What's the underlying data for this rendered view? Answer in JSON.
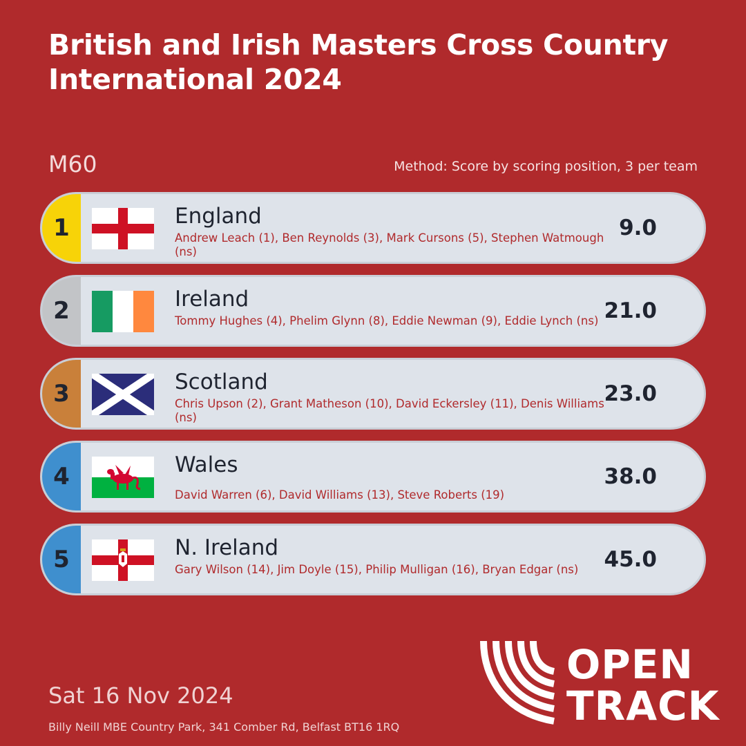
{
  "header": {
    "title": "British and Irish Masters Cross Country International 2024"
  },
  "category": "M60",
  "method": "Method: Score by scoring position, 3 per team",
  "results": [
    {
      "rank": "1",
      "team": "England",
      "flag": "england-flag-icon",
      "rank_color": "#f7d308",
      "runners": "Andrew Leach (1), Ben Reynolds (3), Mark Cursons (5), Stephen Watmough (ns)",
      "score": "9.0"
    },
    {
      "rank": "2",
      "team": "Ireland",
      "flag": "ireland-flag-icon",
      "rank_color": "#c2c4c7",
      "runners": "Tommy Hughes (4), Phelim Glynn (8), Eddie Newman (9), Eddie Lynch (ns)",
      "score": "21.0"
    },
    {
      "rank": "3",
      "team": "Scotland",
      "flag": "scotland-flag-icon",
      "rank_color": "#c9803a",
      "runners": "Chris Upson (2), Grant Matheson (10), David Eckersley (11), Denis Williams (ns)",
      "score": "23.0"
    },
    {
      "rank": "4",
      "team": "Wales",
      "flag": "wales-flag-icon",
      "rank_color": "#3f8fce",
      "runners": "David Warren (6), David Williams (13), Steve Roberts (19)",
      "score": "38.0"
    },
    {
      "rank": "5",
      "team": "N. Ireland",
      "flag": "northern-ireland-flag-icon",
      "rank_color": "#3f8fce",
      "runners": "Gary Wilson (14), Jim Doyle (15), Philip Mulligan (16), Bryan Edgar (ns)",
      "score": "45.0"
    }
  ],
  "footer": {
    "date": "Sat 16 Nov 2024",
    "venue": "Billy Neill MBE Country Park, 341 Comber Rd, Belfast BT16 1RQ"
  },
  "logo": {
    "line1": "OPEN",
    "line2": "TRACK",
    "icon": "opentrack-logo-icon"
  },
  "colors": {
    "background": "#b02a2c",
    "row": "#dee3ea",
    "text_dark": "#1f2430",
    "runner_text": "#b02a2c"
  }
}
